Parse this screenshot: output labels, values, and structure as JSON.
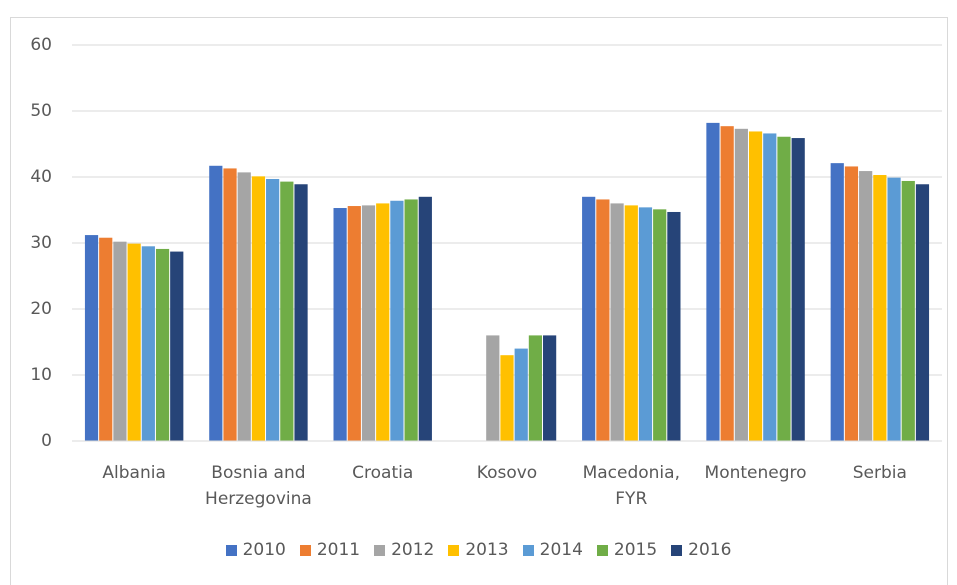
{
  "chart_data": {
    "type": "bar",
    "categories": [
      "Albania",
      "Bosnia and Herzegovina",
      "Croatia",
      "Kosovo",
      "Macedonia, FYR",
      "Montenegro",
      "Serbia"
    ],
    "series": [
      {
        "name": "2010",
        "color": "#4472c4",
        "values": [
          31.2,
          41.7,
          35.3,
          null,
          37.0,
          48.2,
          42.1
        ]
      },
      {
        "name": "2011",
        "color": "#ed7d31",
        "values": [
          30.8,
          41.3,
          35.6,
          null,
          36.6,
          47.7,
          41.6
        ]
      },
      {
        "name": "2012",
        "color": "#a5a5a5",
        "values": [
          30.2,
          40.7,
          35.7,
          16.0,
          36.0,
          47.3,
          40.9
        ]
      },
      {
        "name": "2013",
        "color": "#ffc000",
        "values": [
          29.9,
          40.1,
          36.0,
          13.0,
          35.7,
          46.9,
          40.3
        ]
      },
      {
        "name": "2014",
        "color": "#5b9bd5",
        "values": [
          29.5,
          39.7,
          36.4,
          14.0,
          35.4,
          46.6,
          39.9
        ]
      },
      {
        "name": "2015",
        "color": "#70ad47",
        "values": [
          29.1,
          39.3,
          36.6,
          16.0,
          35.1,
          46.1,
          39.4
        ]
      },
      {
        "name": "2016",
        "color": "#264478",
        "values": [
          28.7,
          38.9,
          37.0,
          16.0,
          34.7,
          45.9,
          38.9
        ]
      }
    ],
    "ylim": [
      0,
      60
    ],
    "yticks": [
      0,
      10,
      20,
      30,
      40,
      50,
      60
    ],
    "grid": true,
    "legend": "bottom"
  }
}
